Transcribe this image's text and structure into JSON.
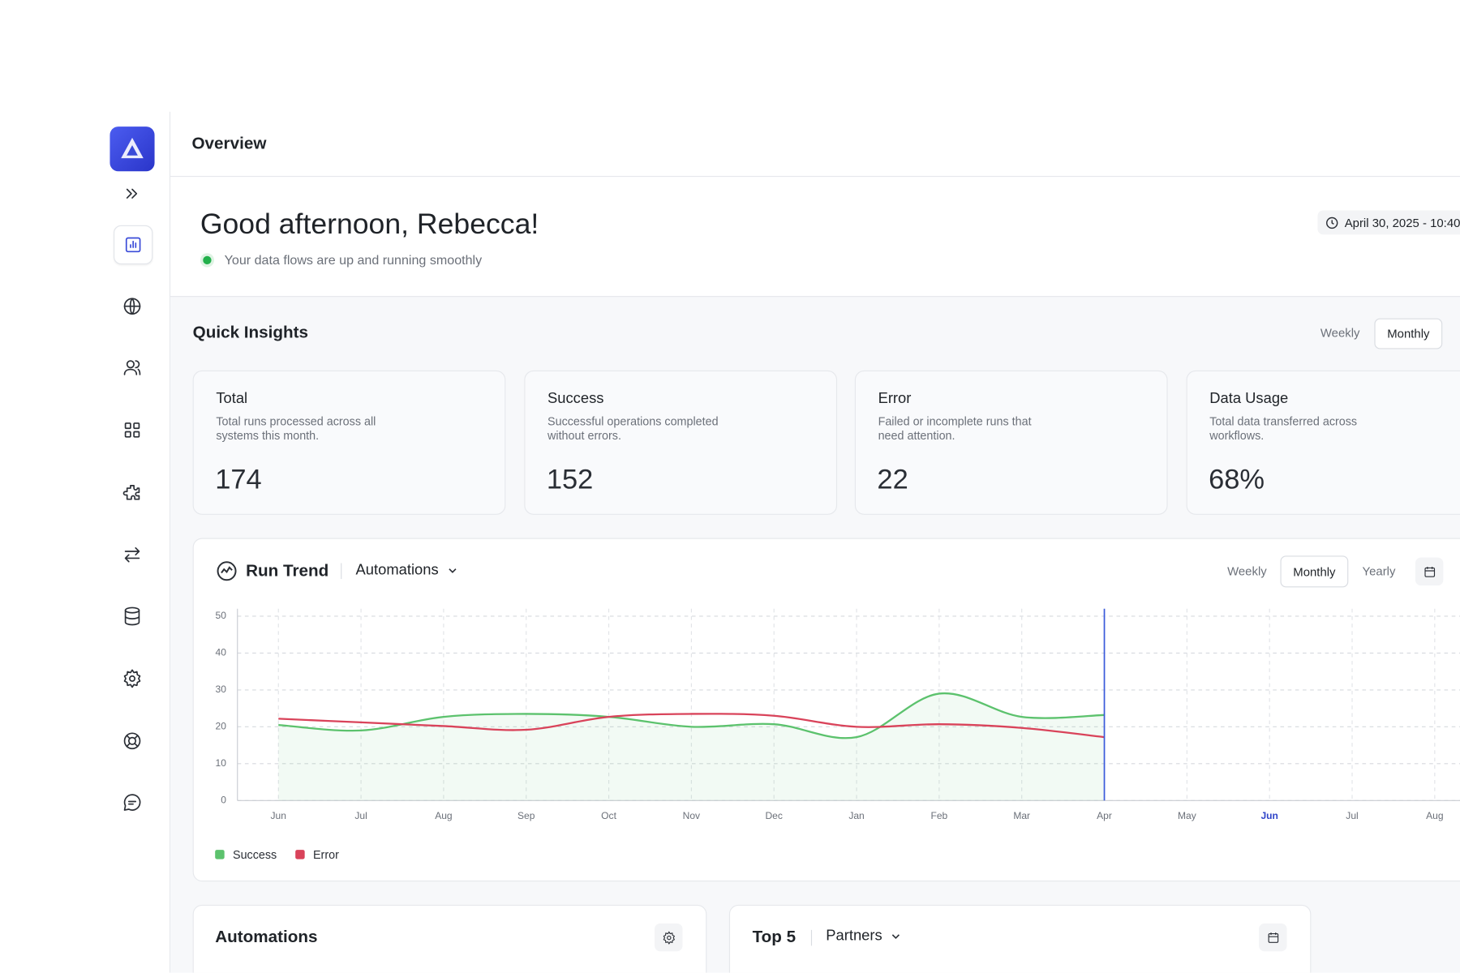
{
  "header": {
    "title": "Overview",
    "date": "April 30, 2025 - 10:40"
  },
  "greeting": {
    "title": "Good afternoon, Rebecca!",
    "status": "Your data flows are up and running smoothly"
  },
  "insights": {
    "title": "Quick Insights",
    "periods": [
      "Weekly",
      "Monthly"
    ],
    "cards": [
      {
        "title": "Total",
        "description": "Total runs processed across all systems this month.",
        "value": "174"
      },
      {
        "title": "Success",
        "description": "Successful operations completed without errors.",
        "value": "152"
      },
      {
        "title": "Error",
        "description": "Failed or incomplete runs that need attention.",
        "value": "22"
      },
      {
        "title": "Data Usage",
        "description": "Total data transferred across workflows.",
        "value": "68%"
      }
    ]
  },
  "run_trend": {
    "title": "Run Trend",
    "selector": "Automations",
    "periods": [
      "Weekly",
      "Monthly",
      "Yearly"
    ]
  },
  "chart_data": {
    "type": "line",
    "categories": [
      "Jun",
      "Jul",
      "Aug",
      "Sep",
      "Oct",
      "Nov",
      "Dec",
      "Jan",
      "Feb",
      "Mar",
      "Apr",
      "May",
      "Jun",
      "Jul",
      "Aug"
    ],
    "series": [
      {
        "name": "Success",
        "color": "#5cc26d",
        "values": [
          20.5,
          19,
          22.7,
          23.5,
          22.7,
          20,
          20.7,
          17.2,
          29,
          22.7,
          23.2,
          null,
          null,
          null,
          null
        ]
      },
      {
        "name": "Error",
        "color": "#d9435a",
        "values": [
          22.2,
          21.2,
          20.2,
          19.2,
          22.7,
          23.5,
          23,
          20,
          20.7,
          19.7,
          17.2,
          null,
          null,
          null,
          null
        ]
      }
    ],
    "ylim": [
      0,
      50
    ],
    "yticks": [
      0,
      10,
      20,
      30,
      40,
      50
    ],
    "grid": true
  },
  "automations": {
    "title": "Automations"
  },
  "top5": {
    "title": "Top 5",
    "selector": "Partners"
  }
}
